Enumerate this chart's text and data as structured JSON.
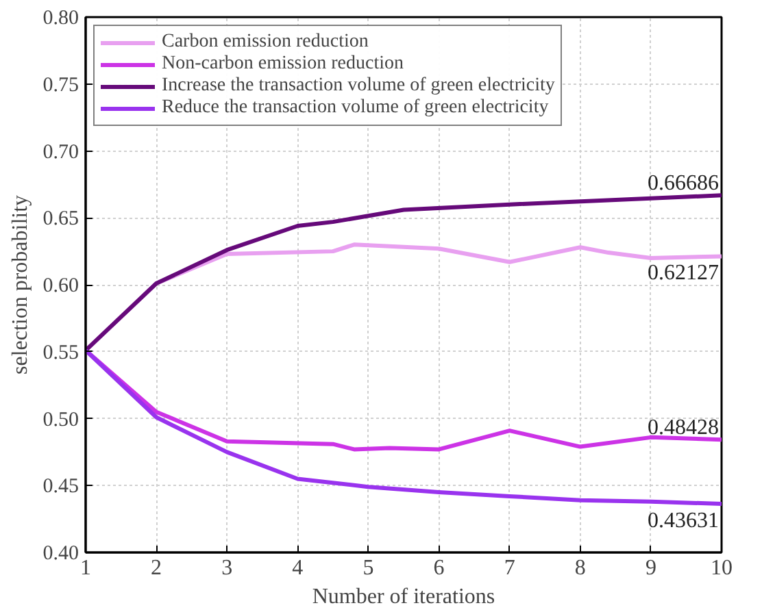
{
  "chart_data": {
    "type": "line",
    "xlabel": "Number of iterations",
    "ylabel": "selection probability",
    "xlim": [
      1,
      10
    ],
    "xticks": [
      1,
      2,
      3,
      4,
      5,
      6,
      7,
      8,
      9,
      10
    ],
    "ylim": [
      0.4,
      0.8
    ],
    "yticks": [
      {
        "value": 0.4,
        "label": "0.40"
      },
      {
        "value": 0.45,
        "label": "0.45"
      },
      {
        "value": 0.5,
        "label": "0.50"
      },
      {
        "value": 0.55,
        "label": "0.55"
      },
      {
        "value": 0.6,
        "label": "0.60"
      },
      {
        "value": 0.65,
        "label": "0.65"
      },
      {
        "value": 0.7,
        "label": "0.70"
      },
      {
        "value": 0.75,
        "label": "0.75"
      },
      {
        "value": 0.8,
        "label": "0.80"
      }
    ],
    "grid": true,
    "legend": "top left",
    "series": [
      {
        "name": "Carbon emission reduction",
        "color": "#e8a0f0",
        "x": [
          1,
          2,
          3,
          4.5,
          4.8,
          6,
          7,
          8,
          8.4,
          9,
          10
        ],
        "values": [
          0.551,
          0.601,
          0.623,
          0.625,
          0.63,
          0.627,
          0.617,
          0.628,
          0.624,
          0.62,
          0.62127
        ]
      },
      {
        "name": "Non-carbon emission reduction",
        "color": "#cc33e6",
        "x": [
          1,
          2,
          3,
          4.5,
          4.8,
          5.3,
          6,
          7,
          8,
          9,
          10
        ],
        "values": [
          0.551,
          0.505,
          0.483,
          0.481,
          0.477,
          0.478,
          0.477,
          0.491,
          0.479,
          0.486,
          0.48428
        ]
      },
      {
        "name": "Increase the transaction volume of green electricity",
        "color": "#660a7a",
        "x": [
          1,
          2,
          3,
          4,
          4.5,
          5.5,
          7,
          10
        ],
        "values": [
          0.551,
          0.601,
          0.626,
          0.644,
          0.647,
          0.656,
          0.66,
          0.66686
        ]
      },
      {
        "name": "Reduce the transaction volume of green electricity",
        "color": "#9933ee",
        "x": [
          1,
          2,
          3,
          4,
          5,
          6,
          7,
          8,
          9,
          10
        ],
        "values": [
          0.551,
          0.501,
          0.475,
          0.455,
          0.449,
          0.445,
          0.442,
          0.439,
          0.438,
          0.43631
        ]
      }
    ],
    "annotations": [
      {
        "text": "0.66686",
        "y": 0.66686
      },
      {
        "text": "0.62127",
        "y": 0.62127
      },
      {
        "text": "0.48428",
        "y": 0.48428
      },
      {
        "text": "0.43631",
        "y": 0.43631
      }
    ]
  }
}
